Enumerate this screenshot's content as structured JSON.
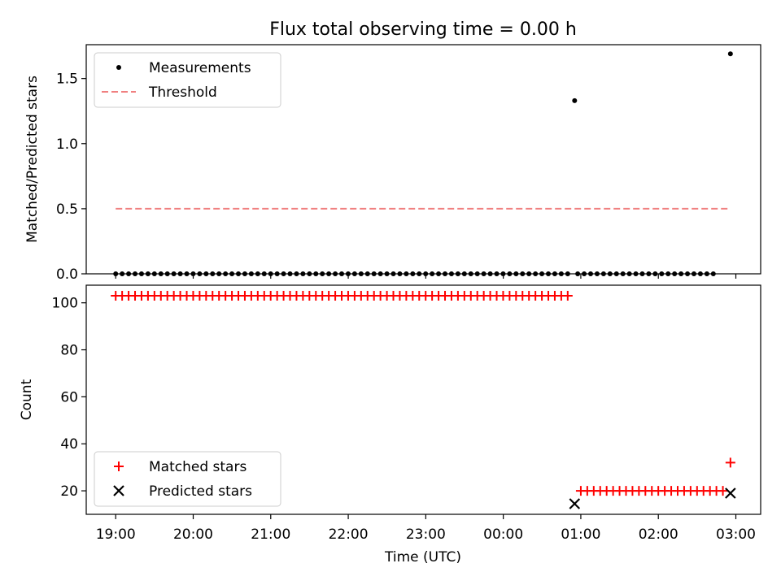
{
  "figure": {
    "title": "Flux total observing time = 0.00 h",
    "xlabel": "Time (UTC)",
    "x_tick_labels": [
      "19:00",
      "20:00",
      "21:00",
      "22:00",
      "23:00",
      "00:00",
      "01:00",
      "02:00",
      "03:00"
    ]
  },
  "chart_data": [
    {
      "type": "scatter",
      "panel": "top",
      "ylabel": "Matched/Predicted stars",
      "ylim": [
        0,
        1.76
      ],
      "yticks": [
        0.0,
        0.5,
        1.0,
        1.5
      ],
      "ytick_labels": [
        "0.0",
        "0.5",
        "1.0",
        "1.5"
      ],
      "x_unit": "hours after 19:00 UTC",
      "xlim": [
        -0.38,
        8.32
      ],
      "x_ticks": [
        0,
        1,
        2,
        3,
        4,
        5,
        6,
        7,
        8
      ],
      "legend": {
        "position": "upper left",
        "entries": [
          "Measurements",
          "Threshold"
        ]
      },
      "series": [
        {
          "name": "Measurements",
          "color": "#000000",
          "marker": "dot",
          "points_zero": {
            "x_start": 0.0,
            "x_step": 0.0833,
            "count": 71,
            "y": 0
          },
          "points_zero_late": {
            "x_start": 5.96,
            "x_step": 0.0833,
            "count": 22,
            "y": 0
          },
          "points": [
            [
              5.92,
              1.33
            ],
            [
              7.93,
              1.69
            ]
          ]
        },
        {
          "name": "Threshold",
          "color": "#f08080",
          "line_style": "dashed",
          "line": {
            "x": [
              0.0,
              7.93
            ],
            "y": 0.5
          }
        }
      ]
    },
    {
      "type": "scatter",
      "panel": "bottom",
      "ylabel": "Count",
      "ylim": [
        10,
        107.5
      ],
      "yticks": [
        20,
        40,
        60,
        80,
        100
      ],
      "ytick_labels": [
        "20",
        "40",
        "60",
        "80",
        "100"
      ],
      "x_unit": "hours after 19:00 UTC",
      "xlim": [
        -0.38,
        8.32
      ],
      "x_ticks": [
        0,
        1,
        2,
        3,
        4,
        5,
        6,
        7,
        8
      ],
      "legend": {
        "position": "lower left",
        "entries": [
          "Matched stars",
          "Predicted stars"
        ]
      },
      "series": [
        {
          "name": "Matched stars",
          "color": "#ff0000",
          "marker": "plus",
          "runs": [
            {
              "x_start": 0.0,
              "x_step": 0.0833,
              "count": 71,
              "y": 103
            },
            {
              "x_start": 6.0,
              "x_step": 0.0833,
              "count": 23,
              "y": 20
            }
          ],
          "points": [
            [
              7.93,
              32
            ]
          ]
        },
        {
          "name": "Predicted stars",
          "color": "#000000",
          "marker": "x",
          "points": [
            [
              5.92,
              14.5
            ],
            [
              7.93,
              19
            ]
          ]
        }
      ]
    }
  ]
}
